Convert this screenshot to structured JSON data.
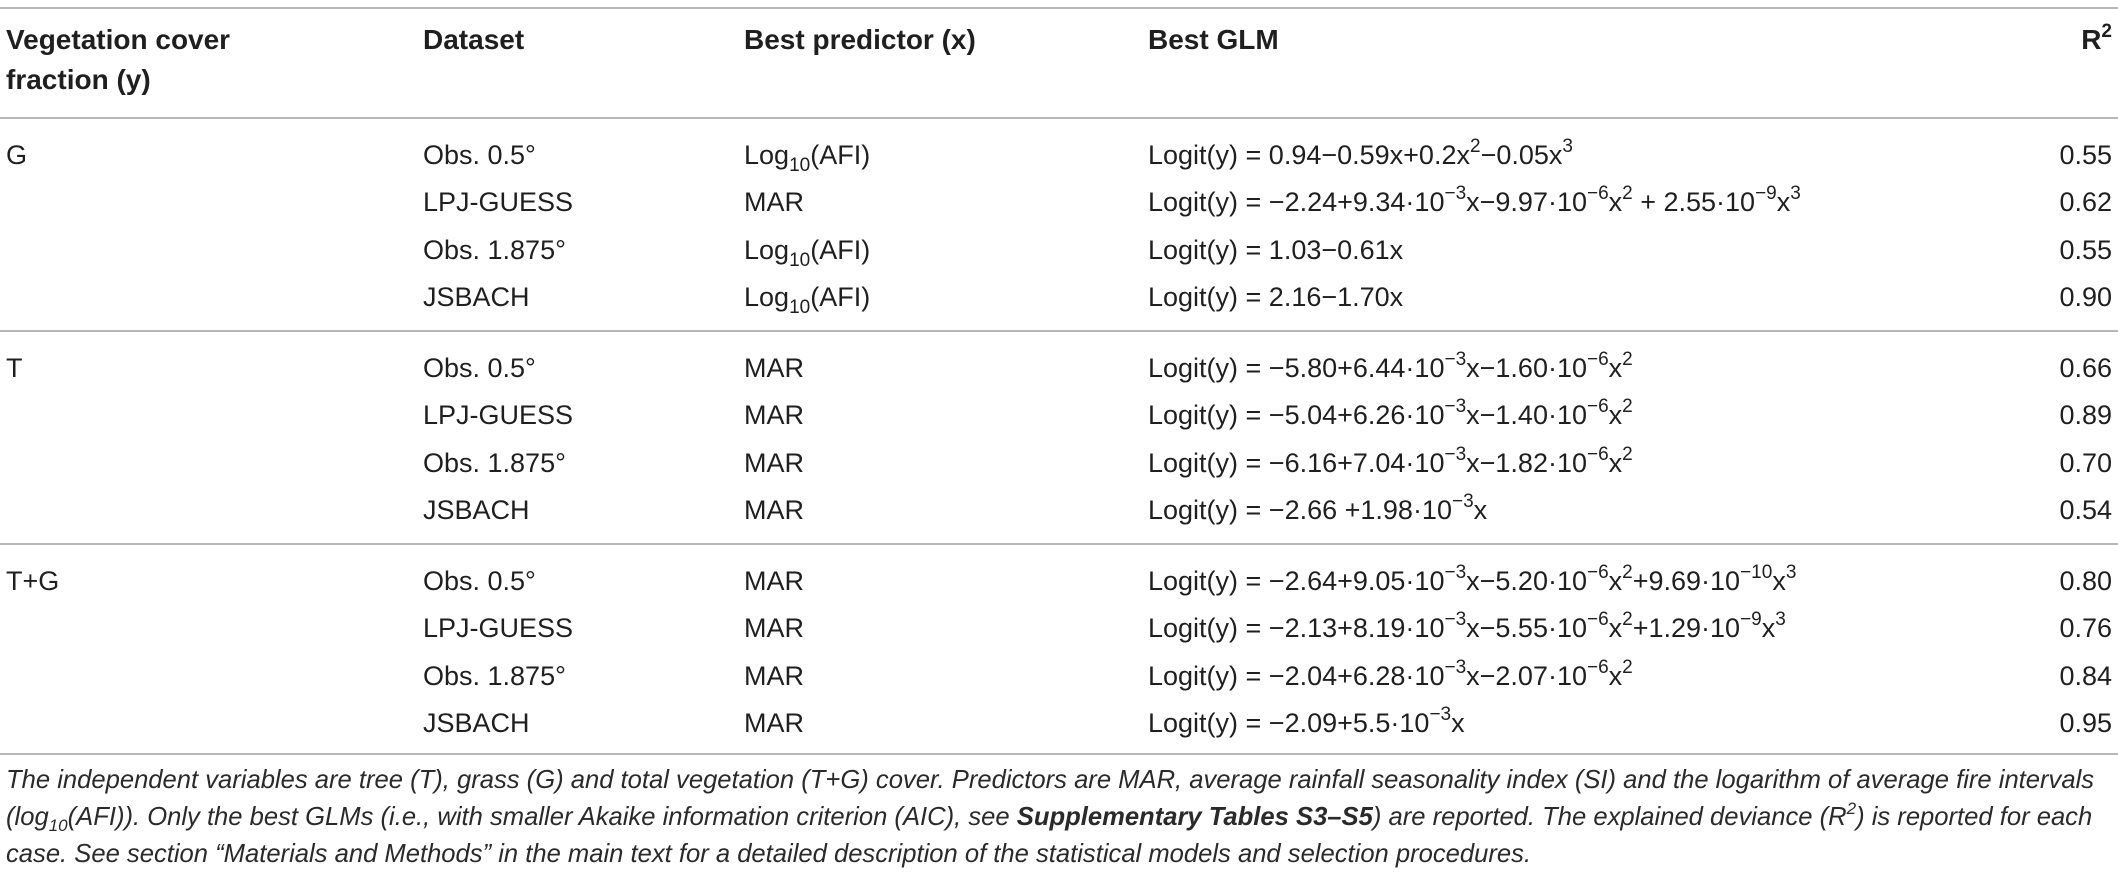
{
  "table": {
    "headers": {
      "col1_line1": "Vegetation cover",
      "col1_line2": "fraction (y)",
      "col2": "Dataset",
      "col3": "Best predictor (x)",
      "col4": "Best GLM",
      "col5_base": "R",
      "col5_sup": "2"
    },
    "groups": [
      {
        "label": "G",
        "rows": [
          {
            "dataset": "Obs. 0.5°",
            "predictor": [
              {
                "t": "Log"
              },
              {
                "t": "10",
                "sub": true
              },
              {
                "t": "(AFI)"
              }
            ],
            "glm": [
              {
                "t": "Logit(y) = 0.94−0.59x+0.2x"
              },
              {
                "t": "2",
                "sup": true
              },
              {
                "t": "−0.05x"
              },
              {
                "t": "3",
                "sup": true
              }
            ],
            "r2": "0.55"
          },
          {
            "dataset": "LPJ-GUESS",
            "predictor": [
              {
                "t": "MAR"
              }
            ],
            "glm": [
              {
                "t": "Logit(y) = −2.24+9.34·10"
              },
              {
                "t": "−3",
                "sup": true
              },
              {
                "t": "x−9.97·10"
              },
              {
                "t": "−6",
                "sup": true
              },
              {
                "t": "x"
              },
              {
                "t": "2",
                "sup": true
              },
              {
                "t": " + 2.55·10"
              },
              {
                "t": "−9",
                "sup": true
              },
              {
                "t": "x"
              },
              {
                "t": "3",
                "sup": true
              }
            ],
            "r2": "0.62"
          },
          {
            "dataset": "Obs. 1.875°",
            "predictor": [
              {
                "t": "Log"
              },
              {
                "t": "10",
                "sub": true
              },
              {
                "t": "(AFI)"
              }
            ],
            "glm": [
              {
                "t": "Logit(y) = 1.03−0.61x"
              }
            ],
            "r2": "0.55"
          },
          {
            "dataset": "JSBACH",
            "predictor": [
              {
                "t": "Log"
              },
              {
                "t": "10",
                "sub": true
              },
              {
                "t": "(AFI)"
              }
            ],
            "glm": [
              {
                "t": "Logit(y) = 2.16−1.70x"
              }
            ],
            "r2": "0.90"
          }
        ]
      },
      {
        "label": "T",
        "rows": [
          {
            "dataset": "Obs. 0.5°",
            "predictor": [
              {
                "t": "MAR"
              }
            ],
            "glm": [
              {
                "t": "Logit(y) = −5.80+6.44·10"
              },
              {
                "t": "−3",
                "sup": true
              },
              {
                "t": "x−1.60·10"
              },
              {
                "t": "−6",
                "sup": true
              },
              {
                "t": "x"
              },
              {
                "t": "2",
                "sup": true
              }
            ],
            "r2": "0.66"
          },
          {
            "dataset": "LPJ-GUESS",
            "predictor": [
              {
                "t": "MAR"
              }
            ],
            "glm": [
              {
                "t": "Logit(y) = −5.04+6.26·10"
              },
              {
                "t": "−3",
                "sup": true
              },
              {
                "t": "x−1.40·10"
              },
              {
                "t": "−6",
                "sup": true
              },
              {
                "t": "x"
              },
              {
                "t": "2",
                "sup": true
              }
            ],
            "r2": "0.89"
          },
          {
            "dataset": "Obs. 1.875°",
            "predictor": [
              {
                "t": "MAR"
              }
            ],
            "glm": [
              {
                "t": "Logit(y) = −6.16+7.04·10"
              },
              {
                "t": "−3",
                "sup": true
              },
              {
                "t": "x−1.82·10"
              },
              {
                "t": "−6",
                "sup": true
              },
              {
                "t": "x"
              },
              {
                "t": "2",
                "sup": true
              }
            ],
            "r2": "0.70"
          },
          {
            "dataset": "JSBACH",
            "predictor": [
              {
                "t": "MAR"
              }
            ],
            "glm": [
              {
                "t": "Logit(y) = −2.66 +1.98·10"
              },
              {
                "t": "−3",
                "sup": true
              },
              {
                "t": "x"
              }
            ],
            "r2": "0.54"
          }
        ]
      },
      {
        "label": "T+G",
        "rows": [
          {
            "dataset": "Obs. 0.5°",
            "predictor": [
              {
                "t": "MAR"
              }
            ],
            "glm": [
              {
                "t": "Logit(y) = −2.64+9.05·10"
              },
              {
                "t": "−3",
                "sup": true
              },
              {
                "t": "x−5.20·10"
              },
              {
                "t": "−6",
                "sup": true
              },
              {
                "t": "x"
              },
              {
                "t": "2",
                "sup": true
              },
              {
                "t": "+9.69·10"
              },
              {
                "t": "−10",
                "sup": true
              },
              {
                "t": "x"
              },
              {
                "t": "3",
                "sup": true
              }
            ],
            "r2": "0.80"
          },
          {
            "dataset": "LPJ-GUESS",
            "predictor": [
              {
                "t": "MAR"
              }
            ],
            "glm": [
              {
                "t": "Logit(y) = −2.13+8.19·10"
              },
              {
                "t": "−3",
                "sup": true
              },
              {
                "t": "x−5.55·10"
              },
              {
                "t": "−6",
                "sup": true
              },
              {
                "t": "x"
              },
              {
                "t": "2",
                "sup": true
              },
              {
                "t": "+1.29·10"
              },
              {
                "t": "−9",
                "sup": true
              },
              {
                "t": "x"
              },
              {
                "t": "3",
                "sup": true
              }
            ],
            "r2": "0.76"
          },
          {
            "dataset": "Obs. 1.875°",
            "predictor": [
              {
                "t": "MAR"
              }
            ],
            "glm": [
              {
                "t": "Logit(y) = −2.04+6.28·10"
              },
              {
                "t": "−3",
                "sup": true
              },
              {
                "t": "x−2.07·10"
              },
              {
                "t": "−6",
                "sup": true
              },
              {
                "t": "x"
              },
              {
                "t": "2",
                "sup": true
              }
            ],
            "r2": "0.84"
          },
          {
            "dataset": "JSBACH",
            "predictor": [
              {
                "t": "MAR"
              }
            ],
            "glm": [
              {
                "t": "Logit(y) = −2.09+5.5·10"
              },
              {
                "t": "−3",
                "sup": true
              },
              {
                "t": "x"
              }
            ],
            "r2": "0.95"
          }
        ]
      }
    ]
  },
  "footnote": [
    {
      "t": "The independent variables are tree (T), grass (G) and total vegetation (T+G) cover. Predictors are MAR, average rainfall seasonality index (SI) and the logarithm of average fire intervals (log"
    },
    {
      "t": "10",
      "sub": true
    },
    {
      "t": "(AFI)). Only the best GLMs (i.e., with smaller Akaike information criterion (AIC), see "
    },
    {
      "t": "Supplementary Tables S3–S5",
      "bold": true
    },
    {
      "t": ") are reported. The explained deviance (R"
    },
    {
      "t": "2",
      "sup": true
    },
    {
      "t": ") is reported for each case. See section “Materials and Methods” in the main text for a detailed description of the statistical models and selection procedures."
    }
  ]
}
